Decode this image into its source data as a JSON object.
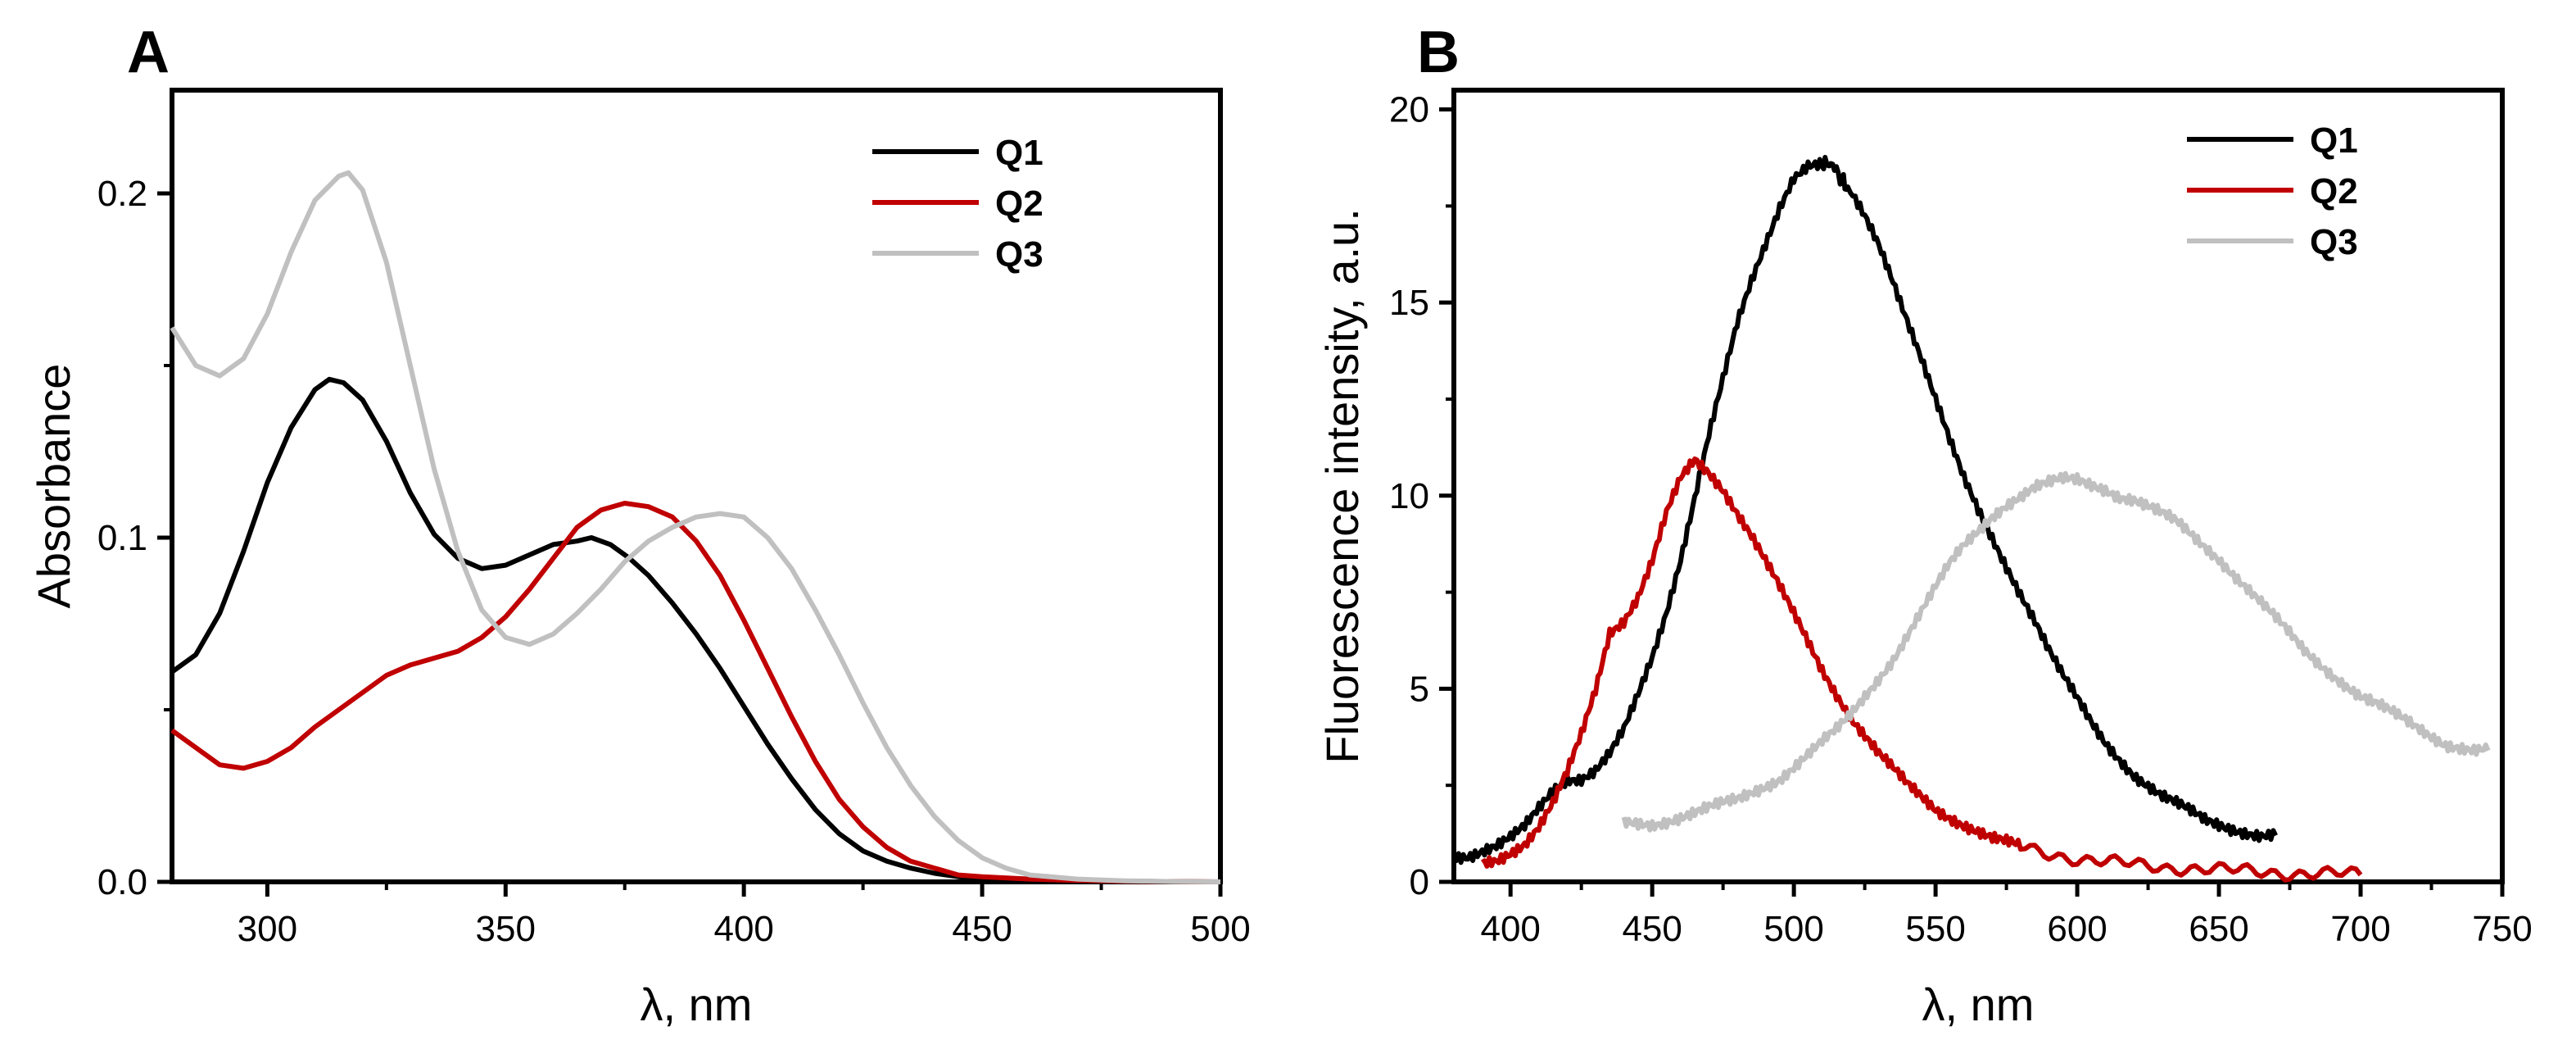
{
  "chart_data": [
    {
      "panel": "A",
      "type": "line",
      "xlabel": "λ, nm",
      "ylabel": "Absorbance",
      "xlim": [
        280,
        500
      ],
      "ylim": [
        0,
        0.23
      ],
      "xticks": [
        300,
        350,
        400,
        450,
        500
      ],
      "yticks": [
        0.0,
        0.1,
        0.2
      ],
      "ytick_labels": [
        "0.0",
        "0.1",
        "0.2"
      ],
      "legend_position": "top-right",
      "series": [
        {
          "name": "Q1",
          "color": "#000000",
          "x": [
            280,
            285,
            290,
            295,
            300,
            305,
            310,
            313,
            316,
            320,
            325,
            330,
            335,
            340,
            345,
            350,
            355,
            360,
            365,
            368,
            372,
            376,
            380,
            385,
            390,
            395,
            400,
            405,
            410,
            415,
            420,
            425,
            430,
            435,
            440,
            445,
            450,
            460,
            470,
            480,
            490,
            500
          ],
          "y": [
            0.061,
            0.066,
            0.078,
            0.096,
            0.116,
            0.132,
            0.143,
            0.146,
            0.145,
            0.14,
            0.128,
            0.113,
            0.101,
            0.094,
            0.091,
            0.092,
            0.095,
            0.098,
            0.099,
            0.1,
            0.098,
            0.094,
            0.089,
            0.081,
            0.072,
            0.062,
            0.051,
            0.04,
            0.03,
            0.021,
            0.014,
            0.009,
            0.006,
            0.004,
            0.0025,
            0.0015,
            0.001,
            0.0005,
            0.0003,
            0.0002,
            0.0001,
            0.0
          ]
        },
        {
          "name": "Q2",
          "color": "#c00000",
          "x": [
            280,
            285,
            290,
            295,
            300,
            305,
            310,
            315,
            320,
            325,
            330,
            335,
            340,
            345,
            350,
            355,
            360,
            365,
            370,
            375,
            380,
            385,
            390,
            395,
            400,
            405,
            410,
            415,
            420,
            425,
            430,
            435,
            440,
            445,
            450,
            460,
            470,
            480,
            490,
            500
          ],
          "y": [
            0.044,
            0.039,
            0.034,
            0.033,
            0.035,
            0.039,
            0.045,
            0.05,
            0.055,
            0.06,
            0.063,
            0.065,
            0.067,
            0.071,
            0.077,
            0.085,
            0.094,
            0.103,
            0.108,
            0.11,
            0.109,
            0.106,
            0.099,
            0.089,
            0.076,
            0.062,
            0.048,
            0.035,
            0.024,
            0.016,
            0.01,
            0.006,
            0.004,
            0.002,
            0.0015,
            0.0008,
            0.0004,
            0.0002,
            0.0001,
            0.0
          ]
        },
        {
          "name": "Q3",
          "color": "#c0c0c0",
          "x": [
            280,
            285,
            290,
            295,
            300,
            305,
            310,
            315,
            317,
            320,
            325,
            330,
            335,
            340,
            345,
            350,
            355,
            360,
            365,
            370,
            375,
            380,
            385,
            390,
            395,
            400,
            405,
            410,
            415,
            420,
            425,
            430,
            435,
            440,
            445,
            450,
            455,
            460,
            470,
            480,
            490,
            500
          ],
          "y": [
            0.161,
            0.15,
            0.147,
            0.152,
            0.165,
            0.183,
            0.198,
            0.205,
            0.206,
            0.201,
            0.18,
            0.15,
            0.12,
            0.096,
            0.079,
            0.071,
            0.069,
            0.072,
            0.078,
            0.085,
            0.093,
            0.099,
            0.103,
            0.106,
            0.107,
            0.106,
            0.1,
            0.091,
            0.079,
            0.066,
            0.052,
            0.039,
            0.028,
            0.019,
            0.012,
            0.007,
            0.004,
            0.002,
            0.0008,
            0.0003,
            0.0001,
            0.0
          ]
        }
      ]
    },
    {
      "panel": "B",
      "type": "line",
      "xlabel": "λ, nm",
      "ylabel": "Fluorescence intensity, a.u.",
      "xlim": [
        380,
        750
      ],
      "ylim": [
        0,
        20.5
      ],
      "xticks": [
        400,
        450,
        500,
        550,
        600,
        650,
        700,
        750
      ],
      "yticks": [
        0,
        5,
        10,
        15,
        20
      ],
      "ytick_labels": [
        "0",
        "5",
        "10",
        "15",
        "20"
      ],
      "legend_position": "top-right",
      "series": [
        {
          "name": "Q1",
          "color": "#000000",
          "x": [
            380,
            385,
            390,
            395,
            400,
            405,
            410,
            415,
            420,
            425,
            430,
            435,
            440,
            445,
            450,
            455,
            460,
            465,
            470,
            475,
            480,
            485,
            490,
            495,
            500,
            505,
            510,
            513,
            517,
            520,
            525,
            530,
            535,
            540,
            545,
            550,
            555,
            560,
            565,
            570,
            575,
            580,
            585,
            590,
            595,
            600,
            605,
            610,
            615,
            620,
            625,
            630,
            635,
            640,
            645,
            650,
            655,
            660,
            665,
            670
          ],
          "y": [
            0.7,
            0.7,
            0.8,
            0.9,
            1.1,
            1.4,
            1.9,
            2.4,
            2.7,
            2.7,
            2.9,
            3.3,
            3.9,
            4.8,
            5.8,
            7.0,
            8.4,
            10.0,
            11.6,
            13.0,
            14.4,
            15.5,
            16.5,
            17.5,
            18.3,
            18.6,
            18.6,
            18.6,
            18.2,
            17.8,
            17.2,
            16.5,
            15.6,
            14.6,
            13.6,
            12.5,
            11.4,
            10.4,
            9.6,
            8.9,
            8.2,
            7.5,
            6.8,
            6.0,
            5.3,
            4.7,
            4.1,
            3.6,
            3.2,
            2.8,
            2.5,
            2.2,
            2.0,
            1.8,
            1.6,
            1.5,
            1.4,
            1.3,
            1.2,
            1.2
          ]
        },
        {
          "name": "Q2",
          "color": "#c00000",
          "x": [
            390,
            395,
            400,
            405,
            410,
            415,
            420,
            425,
            430,
            435,
            440,
            445,
            450,
            455,
            460,
            465,
            470,
            475,
            480,
            485,
            490,
            495,
            500,
            505,
            510,
            515,
            520,
            525,
            530,
            535,
            540,
            545,
            550,
            555,
            560,
            565,
            570,
            575,
            580,
            590,
            600,
            610,
            620,
            630,
            640,
            650,
            660,
            670,
            680,
            690,
            700
          ],
          "y": [
            0.5,
            0.6,
            0.8,
            1.0,
            1.4,
            2.0,
            2.8,
            3.8,
            5.0,
            6.5,
            6.8,
            7.4,
            8.3,
            9.5,
            10.4,
            10.9,
            10.6,
            10.2,
            9.6,
            9.0,
            8.3,
            7.6,
            6.9,
            6.2,
            5.5,
            4.9,
            4.3,
            3.8,
            3.3,
            2.9,
            2.5,
            2.2,
            1.9,
            1.7,
            1.5,
            1.3,
            1.1,
            1.0,
            0.9,
            0.75,
            0.6,
            0.5,
            0.45,
            0.4,
            0.35,
            0.3,
            0.28,
            0.25,
            0.22,
            0.2,
            0.18
          ]
        },
        {
          "name": "Q3",
          "color": "#c0c0c0",
          "x": [
            440,
            445,
            450,
            455,
            460,
            465,
            470,
            475,
            480,
            485,
            490,
            495,
            500,
            505,
            510,
            515,
            520,
            525,
            530,
            535,
            540,
            545,
            550,
            555,
            560,
            565,
            570,
            575,
            580,
            585,
            590,
            595,
            600,
            605,
            610,
            615,
            620,
            625,
            630,
            635,
            640,
            645,
            650,
            655,
            660,
            665,
            670,
            675,
            680,
            685,
            690,
            695,
            700,
            705,
            710,
            715,
            720,
            725,
            730,
            735,
            740,
            745
          ],
          "y": [
            1.5,
            1.5,
            1.5,
            1.6,
            1.7,
            1.8,
            1.9,
            2.0,
            2.1,
            2.3,
            2.5,
            2.7,
            3.0,
            3.3,
            3.6,
            3.9,
            4.3,
            4.8,
            5.3,
            5.8,
            6.4,
            7.0,
            7.6,
            8.2,
            8.7,
            9.1,
            9.5,
            9.8,
            10.0,
            10.2,
            10.3,
            10.4,
            10.4,
            10.3,
            10.2,
            10.0,
            9.9,
            9.7,
            9.5,
            9.3,
            9.0,
            8.7,
            8.4,
            8.0,
            7.6,
            7.2,
            6.8,
            6.4,
            6.0,
            5.7,
            5.4,
            5.1,
            4.8,
            4.6,
            4.4,
            4.2,
            4.0,
            3.8,
            3.6,
            3.5,
            3.4,
            3.4
          ]
        }
      ]
    }
  ]
}
